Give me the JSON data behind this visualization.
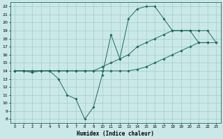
{
  "xlabel": "Humidex (Indice chaleur)",
  "bg_color": "#cbe8e8",
  "line_color": "#1e6b5e",
  "grid_color": "#a0cccc",
  "xlim": [
    -0.5,
    23.5
  ],
  "ylim": [
    7.5,
    22.5
  ],
  "xticks": [
    0,
    1,
    2,
    3,
    4,
    5,
    6,
    7,
    8,
    9,
    10,
    11,
    12,
    13,
    14,
    15,
    16,
    17,
    18,
    19,
    20,
    21,
    22,
    23
  ],
  "yticks": [
    8,
    9,
    10,
    11,
    12,
    13,
    14,
    15,
    16,
    17,
    18,
    19,
    20,
    21,
    22
  ],
  "series": [
    {
      "x": [
        0,
        1,
        2,
        3,
        4,
        5,
        6,
        7,
        8,
        9,
        10,
        11,
        12,
        13,
        14,
        15,
        16,
        17,
        18,
        19,
        20,
        21,
        22
      ],
      "y": [
        14,
        14,
        13.8,
        14,
        14,
        13.0,
        11.0,
        10.5,
        8.0,
        9.5,
        13.5,
        18.5,
        15.5,
        20.5,
        21.7,
        22.0,
        22.0,
        20.5,
        19.0,
        19.0,
        19.0,
        17.5,
        17.5
      ]
    },
    {
      "x": [
        0,
        1,
        2,
        3,
        4,
        5,
        6,
        7,
        8,
        9,
        10,
        11,
        12,
        13,
        14,
        15,
        16,
        17,
        18,
        19,
        20,
        21,
        22,
        23
      ],
      "y": [
        14,
        14,
        14,
        14,
        14,
        14,
        14,
        14,
        14,
        14,
        14.5,
        15.0,
        15.5,
        16.0,
        17.0,
        17.5,
        18.0,
        18.5,
        19.0,
        19.0,
        19.0,
        19.0,
        19.0,
        17.5
      ]
    },
    {
      "x": [
        0,
        1,
        2,
        3,
        4,
        5,
        6,
        7,
        8,
        9,
        10,
        11,
        12,
        13,
        14,
        15,
        16,
        17,
        18,
        19,
        20,
        21,
        22,
        23
      ],
      "y": [
        14,
        14,
        14,
        14,
        14,
        14,
        14,
        14,
        14,
        14,
        14,
        14,
        14,
        14,
        14.2,
        14.5,
        15.0,
        15.5,
        16.0,
        16.5,
        17.0,
        17.5,
        17.5,
        17.5
      ]
    }
  ]
}
